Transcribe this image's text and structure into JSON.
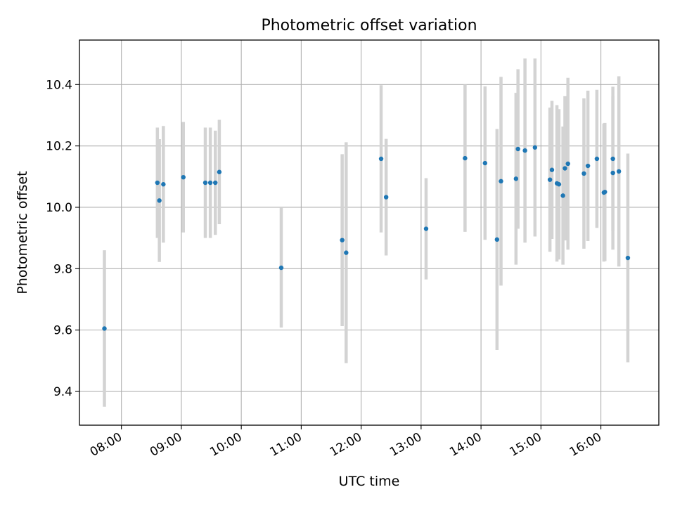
{
  "chart_data": {
    "type": "scatter",
    "title": "Photometric offset variation",
    "xlabel": "UTC time",
    "ylabel": "Photometric offset",
    "xlim": [
      "07:18",
      "16:58"
    ],
    "ylim": [
      9.29,
      10.545
    ],
    "grid": true,
    "x_ticks": [
      "08:00",
      "09:00",
      "10:00",
      "11:00",
      "12:00",
      "13:00",
      "14:00",
      "15:00",
      "16:00"
    ],
    "y_ticks": [
      "9.4",
      "9.6",
      "9.8",
      "10.0",
      "10.2",
      "10.4"
    ],
    "y_tick_values": [
      9.4,
      9.6,
      9.8,
      10.0,
      10.2,
      10.4
    ],
    "point_color": "#1f77b4",
    "errorbar_color": "#d3d3d3",
    "series": [
      {
        "points": [
          {
            "x": "07:43",
            "y": 9.605,
            "err": 0.255
          },
          {
            "x": "08:36",
            "y": 10.08,
            "err": 0.18
          },
          {
            "x": "08:38",
            "y": 10.022,
            "err": 0.2
          },
          {
            "x": "08:42",
            "y": 10.075,
            "err": 0.19
          },
          {
            "x": "09:02",
            "y": 10.098,
            "err": 0.18
          },
          {
            "x": "09:24",
            "y": 10.08,
            "err": 0.18
          },
          {
            "x": "09:29",
            "y": 10.08,
            "err": 0.18
          },
          {
            "x": "09:34",
            "y": 10.08,
            "err": 0.17
          },
          {
            "x": "09:38",
            "y": 10.115,
            "err": 0.17
          },
          {
            "x": "10:40",
            "y": 9.803,
            "err": 0.195
          },
          {
            "x": "11:41",
            "y": 9.893,
            "err": 0.28
          },
          {
            "x": "11:45",
            "y": 9.852,
            "err": 0.36
          },
          {
            "x": "12:20",
            "y": 10.158,
            "err": 0.24
          },
          {
            "x": "12:25",
            "y": 10.033,
            "err": 0.19
          },
          {
            "x": "13:05",
            "y": 9.93,
            "err": 0.165
          },
          {
            "x": "13:44",
            "y": 10.16,
            "err": 0.24
          },
          {
            "x": "14:04",
            "y": 10.144,
            "err": 0.25
          },
          {
            "x": "14:16",
            "y": 9.895,
            "err": 0.36
          },
          {
            "x": "14:20",
            "y": 10.085,
            "err": 0.34
          },
          {
            "x": "14:35",
            "y": 10.093,
            "err": 0.28
          },
          {
            "x": "14:37",
            "y": 10.19,
            "err": 0.26
          },
          {
            "x": "14:44",
            "y": 10.185,
            "err": 0.3
          },
          {
            "x": "14:54",
            "y": 10.195,
            "err": 0.29
          },
          {
            "x": "15:09",
            "y": 10.09,
            "err": 0.235
          },
          {
            "x": "15:11",
            "y": 10.122,
            "err": 0.225
          },
          {
            "x": "15:16",
            "y": 10.078,
            "err": 0.255
          },
          {
            "x": "15:18",
            "y": 10.075,
            "err": 0.245
          },
          {
            "x": "15:22",
            "y": 10.038,
            "err": 0.225
          },
          {
            "x": "15:24",
            "y": 10.127,
            "err": 0.235
          },
          {
            "x": "15:27",
            "y": 10.142,
            "err": 0.28
          },
          {
            "x": "15:43",
            "y": 10.11,
            "err": 0.245
          },
          {
            "x": "15:47",
            "y": 10.135,
            "err": 0.245
          },
          {
            "x": "15:56",
            "y": 10.158,
            "err": 0.225
          },
          {
            "x": "16:03",
            "y": 10.048,
            "err": 0.225
          },
          {
            "x": "16:04",
            "y": 10.05,
            "err": 0.225
          },
          {
            "x": "16:12",
            "y": 10.158,
            "err": 0.235
          },
          {
            "x": "16:12",
            "y": 10.112,
            "err": 0.25
          },
          {
            "x": "16:18",
            "y": 10.117,
            "err": 0.31
          },
          {
            "x": "16:27",
            "y": 9.835,
            "err": 0.34
          }
        ]
      }
    ]
  }
}
